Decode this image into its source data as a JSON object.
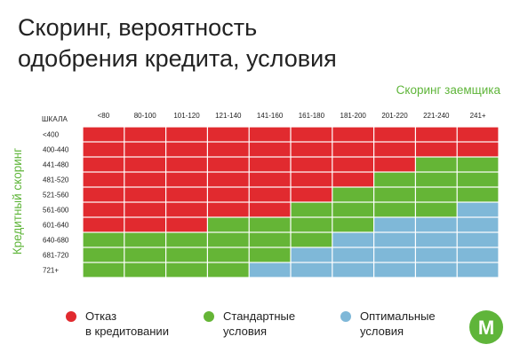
{
  "title": {
    "line1": "Скоринг, вероятность",
    "line2": "одобрения кредита, условия"
  },
  "x_axis_title": "Скоринг заемщика",
  "y_axis_title": "Кредитный скоринг",
  "scale_label": "ШКАЛА",
  "colors": {
    "refusal": "#e12a2f",
    "standard": "#65b536",
    "optimal": "#7fb8d8",
    "accent_green": "#5fb53a"
  },
  "legend": [
    {
      "key": "refusal",
      "line1": "Отказ",
      "line2": "в кредитовании"
    },
    {
      "key": "standard",
      "line1": "Стандартные",
      "line2": "условия"
    },
    {
      "key": "optimal",
      "line1": "Оптимальные",
      "line2": "условия"
    }
  ],
  "logo_letter": "M",
  "chart_data": {
    "type": "heatmap",
    "title": "Скоринг, вероятность одобрения кредита, условия",
    "xlabel": "Скоринг заемщика",
    "ylabel": "Кредитный скоринг",
    "x_categories": [
      "<80",
      "80-100",
      "101-120",
      "121-140",
      "141-160",
      "161-180",
      "181-200",
      "201-220",
      "221-240",
      "241+"
    ],
    "y_categories": [
      "<400",
      "400-440",
      "441-480",
      "481-520",
      "521-560",
      "561-600",
      "601-640",
      "640-680",
      "681-720",
      "721+"
    ],
    "value_legend": {
      "R": "Отказ в кредитовании",
      "G": "Стандартные условия",
      "B": "Оптимальные условия"
    },
    "values": [
      [
        "R",
        "R",
        "R",
        "R",
        "R",
        "R",
        "R",
        "R",
        "R",
        "R"
      ],
      [
        "R",
        "R",
        "R",
        "R",
        "R",
        "R",
        "R",
        "R",
        "R",
        "R"
      ],
      [
        "R",
        "R",
        "R",
        "R",
        "R",
        "R",
        "R",
        "R",
        "G",
        "G"
      ],
      [
        "R",
        "R",
        "R",
        "R",
        "R",
        "R",
        "R",
        "G",
        "G",
        "G"
      ],
      [
        "R",
        "R",
        "R",
        "R",
        "R",
        "R",
        "G",
        "G",
        "G",
        "G"
      ],
      [
        "R",
        "R",
        "R",
        "R",
        "R",
        "G",
        "G",
        "G",
        "G",
        "B"
      ],
      [
        "R",
        "R",
        "R",
        "G",
        "G",
        "G",
        "G",
        "B",
        "B",
        "B"
      ],
      [
        "G",
        "G",
        "G",
        "G",
        "G",
        "G",
        "B",
        "B",
        "B",
        "B"
      ],
      [
        "G",
        "G",
        "G",
        "G",
        "G",
        "B",
        "B",
        "B",
        "B",
        "B"
      ],
      [
        "G",
        "G",
        "G",
        "G",
        "B",
        "B",
        "B",
        "B",
        "B",
        "B"
      ]
    ]
  }
}
